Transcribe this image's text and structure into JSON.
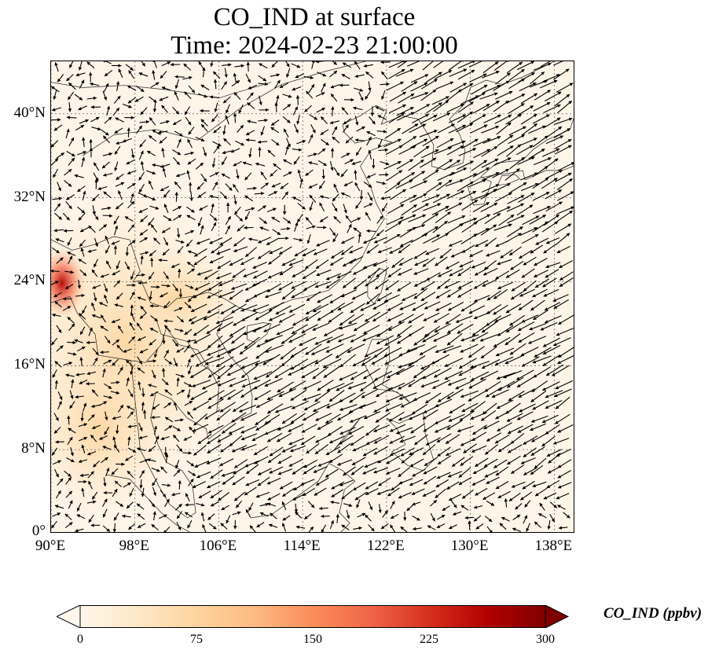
{
  "title": {
    "line1": "CO_IND at surface",
    "line2": "Time: 2024-02-23 21:00:00"
  },
  "map": {
    "projection": "PlateCarree",
    "lon_range": [
      90,
      140
    ],
    "lat_range": [
      0,
      45
    ],
    "gridlines": true,
    "coastlines": true,
    "wind_vectors": true,
    "background_color": "#fef5e9",
    "hotspot_color": "#b30000"
  },
  "axes": {
    "lat_ticks": [
      {
        "value": 40,
        "label": "40°N"
      },
      {
        "value": 32,
        "label": "32°N"
      },
      {
        "value": 24,
        "label": "24°N"
      },
      {
        "value": 16,
        "label": "16°N"
      },
      {
        "value": 8,
        "label": "8°N"
      },
      {
        "value": 0,
        "label": "0°"
      }
    ],
    "lon_ticks": [
      {
        "value": 90,
        "label": "90°E"
      },
      {
        "value": 98,
        "label": "98°E"
      },
      {
        "value": 106,
        "label": "106°E"
      },
      {
        "value": 114,
        "label": "114°E"
      },
      {
        "value": 122,
        "label": "122°E"
      },
      {
        "value": 130,
        "label": "130°E"
      },
      {
        "value": 138,
        "label": "138°E"
      }
    ]
  },
  "colorbar": {
    "label": "CO_IND (ppbv)",
    "colormap": "OrRd",
    "min": 0,
    "max": 300,
    "extend": "both",
    "ticks": [
      "0",
      "75",
      "150",
      "225",
      "300"
    ],
    "colors": [
      "#fff7ec",
      "#fee8c8",
      "#fdd49e",
      "#fdbb84",
      "#fc8d59",
      "#ef6548",
      "#d7301f",
      "#b30000",
      "#7f0000"
    ]
  }
}
